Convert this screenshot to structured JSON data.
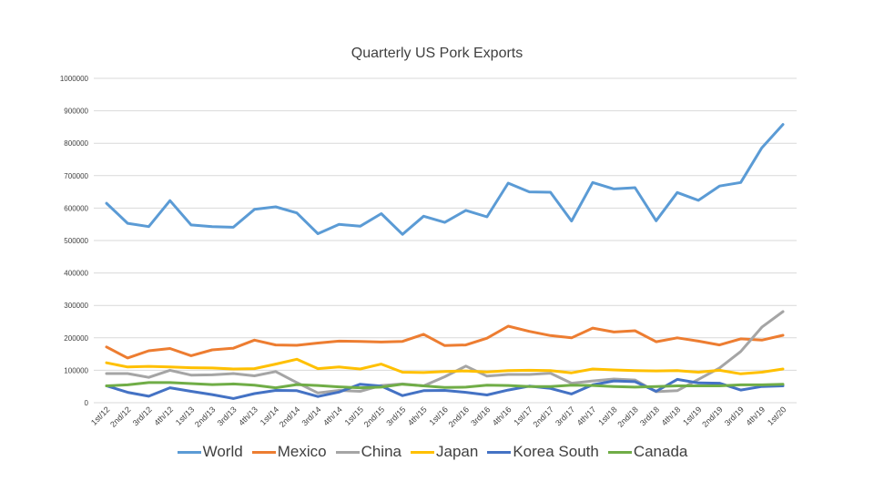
{
  "chart_data": {
    "type": "line",
    "title": "Quarterly US Pork Exports",
    "xlabel": "",
    "ylabel": "",
    "ylim": [
      0,
      1000000
    ],
    "yticks": [
      "0",
      "100000",
      "200000",
      "300000",
      "400000",
      "500000",
      "600000",
      "700000",
      "800000",
      "900000",
      "1000000"
    ],
    "grid": true,
    "legend_position": "bottom",
    "categories": [
      "1st/12",
      "2nd/12",
      "3rd/12",
      "4th/12",
      "1st/13",
      "2nd/13",
      "3rd/13",
      "4th/13",
      "1st/14",
      "2nd/14",
      "3rd/14",
      "4th/14",
      "1st/15",
      "2nd/15",
      "3rd/15",
      "4th/15",
      "1st/16",
      "2nd/16",
      "3rd/16",
      "4th/16",
      "1st/17",
      "2nd/17",
      "3rd/17",
      "4th/17",
      "1st/18",
      "2nd/18",
      "3rd/18",
      "4th/18",
      "1st/19",
      "2nd/19",
      "3rd/19",
      "4th/19",
      "1st/20"
    ],
    "series": [
      {
        "name": "World",
        "color": "#5b9bd5",
        "values": [
          615000,
          553000,
          543000,
          623000,
          548000,
          543000,
          541000,
          596000,
          604000,
          585000,
          521000,
          550000,
          544000,
          583000,
          519000,
          575000,
          556000,
          593000,
          573000,
          677000,
          650000,
          649000,
          560000,
          679000,
          659000,
          663000,
          561000,
          648000,
          624000,
          668000,
          679000,
          786000,
          858000
        ]
      },
      {
        "name": "Mexico",
        "color": "#ed7d31",
        "values": [
          172000,
          138000,
          160000,
          167000,
          145000,
          163000,
          168000,
          193000,
          178000,
          177000,
          184000,
          190000,
          189000,
          187000,
          189000,
          211000,
          176000,
          178000,
          199000,
          236000,
          220000,
          207000,
          200000,
          230000,
          218000,
          222000,
          188000,
          200000,
          190000,
          178000,
          197000,
          193000,
          208000
        ]
      },
      {
        "name": "China",
        "color": "#a5a5a5",
        "values": [
          90000,
          90000,
          78000,
          100000,
          85000,
          86000,
          90000,
          83000,
          96000,
          62000,
          30000,
          38000,
          35000,
          53000,
          58000,
          52000,
          80000,
          113000,
          82000,
          87000,
          87000,
          91000,
          60000,
          67000,
          73000,
          70000,
          34000,
          37000,
          72000,
          107000,
          158000,
          233000,
          281000
        ]
      },
      {
        "name": "Japan",
        "color": "#ffc000",
        "values": [
          123000,
          110000,
          112000,
          110000,
          108000,
          107000,
          104000,
          105000,
          119000,
          134000,
          105000,
          110000,
          104000,
          119000,
          94000,
          93000,
          96000,
          98000,
          95000,
          99000,
          100000,
          99000,
          92000,
          104000,
          101000,
          99000,
          98000,
          99000,
          94000,
          100000,
          89000,
          94000,
          104000
        ]
      },
      {
        "name": "Korea South",
        "color": "#4472c4",
        "values": [
          52000,
          32000,
          20000,
          46000,
          35000,
          25000,
          13000,
          28000,
          38000,
          37000,
          19000,
          33000,
          57000,
          51000,
          22000,
          37000,
          38000,
          32000,
          24000,
          39000,
          51000,
          44000,
          27000,
          55000,
          67000,
          65000,
          35000,
          72000,
          61000,
          60000,
          39000,
          50000,
          52000
        ]
      },
      {
        "name": "Canada",
        "color": "#70ad47",
        "values": [
          52000,
          55000,
          62000,
          62000,
          59000,
          56000,
          58000,
          54000,
          46000,
          56000,
          53000,
          49000,
          46000,
          48000,
          57000,
          52000,
          47000,
          48000,
          54000,
          53000,
          50000,
          50000,
          54000,
          53000,
          50000,
          48000,
          50000,
          52000,
          52000,
          52000,
          55000,
          55000,
          57000
        ]
      }
    ]
  }
}
